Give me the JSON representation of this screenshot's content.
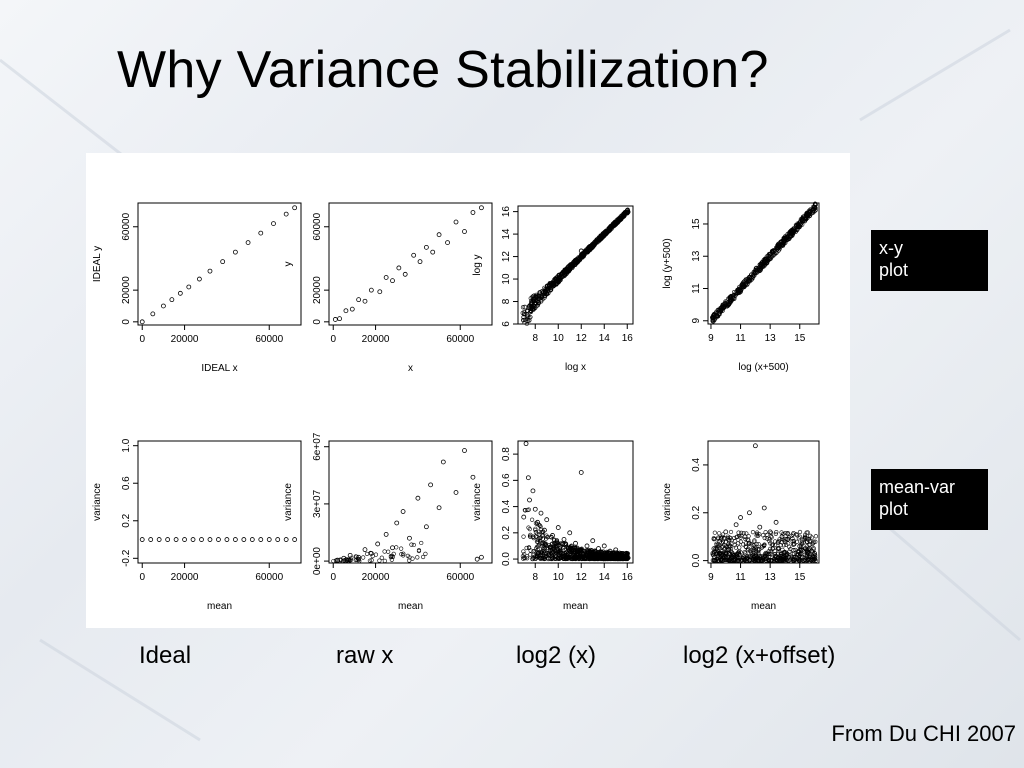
{
  "slide": {
    "title": "Why Variance Stabilization?",
    "captions": [
      "Ideal",
      "raw x",
      "log2 (x)",
      "log2 (x+offset)"
    ],
    "labels": [
      "x-y\nplot",
      "mean-var\nplot"
    ],
    "source": "From Du CHI 2007"
  },
  "chart_data": [
    {
      "type": "scatter",
      "title": "",
      "xlabel": "IDEAL x",
      "ylabel": "IDEAL y",
      "xlim": [
        -2000,
        75000
      ],
      "ylim": [
        -2000,
        75000
      ],
      "xticks": [
        0,
        20000,
        60000
      ],
      "yticks": [
        0,
        20000,
        60000
      ],
      "xtick_labels": [
        "0",
        "20000",
        "60000"
      ],
      "ytick_labels": [
        "0",
        "20000",
        "60000"
      ],
      "pattern": "exact line y = x",
      "points": [
        [
          0,
          0
        ],
        [
          5000,
          5000
        ],
        [
          10000,
          10000
        ],
        [
          14000,
          14000
        ],
        [
          18000,
          18000
        ],
        [
          22000,
          22000
        ],
        [
          27000,
          27000
        ],
        [
          32000,
          32000
        ],
        [
          38000,
          38000
        ],
        [
          44000,
          44000
        ],
        [
          50000,
          50000
        ],
        [
          56000,
          56000
        ],
        [
          62000,
          62000
        ],
        [
          68000,
          68000
        ],
        [
          72000,
          72000
        ]
      ]
    },
    {
      "type": "scatter",
      "title": "",
      "xlabel": "x",
      "ylabel": "y",
      "xlim": [
        -2000,
        75000
      ],
      "ylim": [
        -2000,
        75000
      ],
      "xticks": [
        0,
        20000,
        60000
      ],
      "yticks": [
        0,
        20000,
        60000
      ],
      "xtick_labels": [
        "0",
        "20000",
        "60000"
      ],
      "ytick_labels": [
        "0",
        "20000",
        "60000"
      ],
      "pattern": "y ≈ x, spread grows with x",
      "points": [
        [
          1000,
          1500
        ],
        [
          3000,
          2000
        ],
        [
          6000,
          7000
        ],
        [
          9000,
          8000
        ],
        [
          12000,
          14000
        ],
        [
          15000,
          13000
        ],
        [
          18000,
          20000
        ],
        [
          22000,
          19000
        ],
        [
          25000,
          28000
        ],
        [
          28000,
          26000
        ],
        [
          31000,
          34000
        ],
        [
          34000,
          30000
        ],
        [
          38000,
          42000
        ],
        [
          41000,
          38000
        ],
        [
          44000,
          47000
        ],
        [
          47000,
          44000
        ],
        [
          50000,
          55000
        ],
        [
          54000,
          50000
        ],
        [
          58000,
          63000
        ],
        [
          62000,
          57000
        ],
        [
          66000,
          69000
        ],
        [
          70000,
          72000
        ]
      ]
    },
    {
      "type": "scatter",
      "title": "",
      "xlabel": "log x",
      "ylabel": "log y",
      "xlim": [
        6.5,
        16.5
      ],
      "ylim": [
        6,
        16.5
      ],
      "xticks": [
        8,
        10,
        12,
        14,
        16
      ],
      "yticks": [
        6,
        8,
        10,
        12,
        14,
        16
      ],
      "xtick_labels": [
        "8",
        "10",
        "12",
        "14",
        "16"
      ],
      "ytick_labels": [
        "6",
        "8",
        "10",
        "12",
        "14",
        "16"
      ],
      "pattern": "dense band along y = x, wider at low x",
      "points": [
        [
          7.0,
          6.6
        ],
        [
          7.1,
          7.5
        ],
        [
          7.3,
          6.8
        ],
        [
          7.5,
          7.6
        ],
        [
          7.8,
          7.3
        ],
        [
          8.0,
          8.4
        ],
        [
          8.3,
          7.9
        ],
        [
          8.6,
          8.9
        ],
        [
          9.0,
          8.7
        ],
        [
          9.4,
          9.6
        ],
        [
          9.8,
          9.9
        ],
        [
          10.2,
          10.1
        ],
        [
          10.6,
          10.8
        ],
        [
          11.0,
          11.2
        ],
        [
          11.5,
          11.4
        ],
        [
          12.0,
          12.5
        ],
        [
          12.5,
          12.4
        ],
        [
          13.0,
          13.1
        ],
        [
          13.5,
          13.6
        ],
        [
          14.0,
          14.0
        ],
        [
          14.5,
          14.6
        ],
        [
          15.0,
          15.1
        ],
        [
          15.5,
          15.5
        ],
        [
          16.0,
          16.1
        ]
      ]
    },
    {
      "type": "scatter",
      "title": "",
      "xlabel": "log (x+500)",
      "ylabel": "log (y+500)",
      "xlim": [
        8.8,
        16.3
      ],
      "ylim": [
        8.8,
        16.3
      ],
      "xticks": [
        9,
        11,
        13,
        15
      ],
      "yticks": [
        9,
        11,
        13,
        15
      ],
      "xtick_labels": [
        "9",
        "11",
        "13",
        "15"
      ],
      "ytick_labels": [
        "9",
        "11",
        "13",
        "15"
      ],
      "pattern": "tight band along y = x",
      "points": [
        [
          9.1,
          9.2
        ],
        [
          9.4,
          9.3
        ],
        [
          9.7,
          9.8
        ],
        [
          10.0,
          10.0
        ],
        [
          10.4,
          10.3
        ],
        [
          10.8,
          10.9
        ],
        [
          11.2,
          11.1
        ],
        [
          11.6,
          11.7
        ],
        [
          12.0,
          12.0
        ],
        [
          12.4,
          12.5
        ],
        [
          12.8,
          12.7
        ],
        [
          13.2,
          13.3
        ],
        [
          13.6,
          13.6
        ],
        [
          14.0,
          14.1
        ],
        [
          14.4,
          14.3
        ],
        [
          14.8,
          14.9
        ],
        [
          15.2,
          15.2
        ],
        [
          15.6,
          15.6
        ],
        [
          16.0,
          16.0
        ]
      ]
    },
    {
      "type": "scatter",
      "title": "",
      "xlabel": "mean",
      "ylabel": "variance",
      "xlim": [
        -2000,
        75000
      ],
      "ylim": [
        -0.25,
        1.05
      ],
      "xticks": [
        0,
        20000,
        60000
      ],
      "yticks": [
        -0.2,
        0.2,
        0.6,
        1.0
      ],
      "xtick_labels": [
        "0",
        "20000",
        "60000"
      ],
      "ytick_labels": [
        "-0.2",
        "0.2",
        "0.6",
        "1.0"
      ],
      "pattern": "constant variance 0",
      "points": [
        [
          0,
          0
        ],
        [
          4000,
          0
        ],
        [
          8000,
          0
        ],
        [
          12000,
          0
        ],
        [
          16000,
          0
        ],
        [
          20000,
          0
        ],
        [
          24000,
          0
        ],
        [
          28000,
          0
        ],
        [
          32000,
          0
        ],
        [
          36000,
          0
        ],
        [
          40000,
          0
        ],
        [
          44000,
          0
        ],
        [
          48000,
          0
        ],
        [
          52000,
          0
        ],
        [
          56000,
          0
        ],
        [
          60000,
          0
        ],
        [
          64000,
          0
        ],
        [
          68000,
          0
        ],
        [
          72000,
          0
        ]
      ]
    },
    {
      "type": "scatter",
      "title": "",
      "xlabel": "mean",
      "ylabel": "variance",
      "xlim": [
        -2000,
        75000
      ],
      "ylim": [
        -1000000,
        63000000
      ],
      "xticks": [
        0,
        20000,
        60000
      ],
      "yticks": [
        0,
        30000000,
        60000000
      ],
      "xtick_labels": [
        "0",
        "20000",
        "60000"
      ],
      "ytick_labels": [
        "0e+00",
        "3e+07",
        "6e+07"
      ],
      "pattern": "variance grows with mean",
      "points": [
        [
          2000,
          500000
        ],
        [
          5000,
          1500000
        ],
        [
          8000,
          3000000
        ],
        [
          12000,
          2000000
        ],
        [
          15000,
          6000000
        ],
        [
          18000,
          4000000
        ],
        [
          21000,
          9000000
        ],
        [
          25000,
          14000000
        ],
        [
          28000,
          7000000
        ],
        [
          30000,
          20000000
        ],
        [
          33000,
          26000000
        ],
        [
          36000,
          12000000
        ],
        [
          40000,
          33000000
        ],
        [
          44000,
          18000000
        ],
        [
          46000,
          40000000
        ],
        [
          50000,
          28000000
        ],
        [
          52000,
          52000000
        ],
        [
          58000,
          36000000
        ],
        [
          62000,
          58000000
        ],
        [
          66000,
          44000000
        ],
        [
          68000,
          1000000
        ],
        [
          70000,
          2000000
        ]
      ]
    },
    {
      "type": "scatter",
      "title": "",
      "xlabel": "mean",
      "ylabel": "variance",
      "xlim": [
        6.5,
        16.5
      ],
      "ylim": [
        -0.03,
        0.9
      ],
      "xticks": [
        8,
        10,
        12,
        14,
        16
      ],
      "yticks": [
        0.0,
        0.2,
        0.4,
        0.6,
        0.8
      ],
      "xtick_labels": [
        "8",
        "10",
        "12",
        "14",
        "16"
      ],
      "ytick_labels": [
        "0.0",
        "0.2",
        "0.4",
        "0.6",
        "0.8"
      ],
      "pattern": "variance high at low mean, decreasing",
      "points": [
        [
          7.0,
          0.32
        ],
        [
          7.2,
          0.88
        ],
        [
          7.4,
          0.62
        ],
        [
          7.5,
          0.45
        ],
        [
          7.8,
          0.52
        ],
        [
          8.0,
          0.38
        ],
        [
          8.2,
          0.28
        ],
        [
          8.5,
          0.35
        ],
        [
          8.8,
          0.22
        ],
        [
          9.0,
          0.3
        ],
        [
          9.5,
          0.18
        ],
        [
          10.0,
          0.24
        ],
        [
          10.5,
          0.15
        ],
        [
          11.0,
          0.2
        ],
        [
          11.5,
          0.12
        ],
        [
          12.0,
          0.66
        ],
        [
          12.5,
          0.1
        ],
        [
          13.0,
          0.14
        ],
        [
          13.5,
          0.08
        ],
        [
          14.0,
          0.1
        ],
        [
          14.5,
          0.06
        ],
        [
          15.0,
          0.07
        ],
        [
          15.5,
          0.04
        ],
        [
          16.0,
          0.03
        ]
      ]
    },
    {
      "type": "scatter",
      "title": "",
      "xlabel": "mean",
      "ylabel": "variance",
      "xlim": [
        8.8,
        16.3
      ],
      "ylim": [
        -0.01,
        0.5
      ],
      "xticks": [
        9,
        11,
        13,
        15
      ],
      "yticks": [
        0.0,
        0.2,
        0.4
      ],
      "xtick_labels": [
        "9",
        "11",
        "13",
        "15"
      ],
      "ytick_labels": [
        "0.0",
        "0.2",
        "0.4"
      ],
      "pattern": "variance roughly constant",
      "points": [
        [
          9.2,
          0.05
        ],
        [
          9.6,
          0.08
        ],
        [
          10.0,
          0.12
        ],
        [
          10.3,
          0.06
        ],
        [
          10.7,
          0.15
        ],
        [
          11.0,
          0.18
        ],
        [
          11.3,
          0.1
        ],
        [
          11.6,
          0.2
        ],
        [
          12.0,
          0.48
        ],
        [
          12.3,
          0.14
        ],
        [
          12.6,
          0.22
        ],
        [
          13.0,
          0.12
        ],
        [
          13.4,
          0.16
        ],
        [
          13.8,
          0.1
        ],
        [
          14.2,
          0.09
        ],
        [
          14.6,
          0.07
        ],
        [
          15.0,
          0.06
        ],
        [
          15.4,
          0.05
        ],
        [
          15.8,
          0.04
        ],
        [
          16.0,
          0.03
        ]
      ]
    }
  ]
}
